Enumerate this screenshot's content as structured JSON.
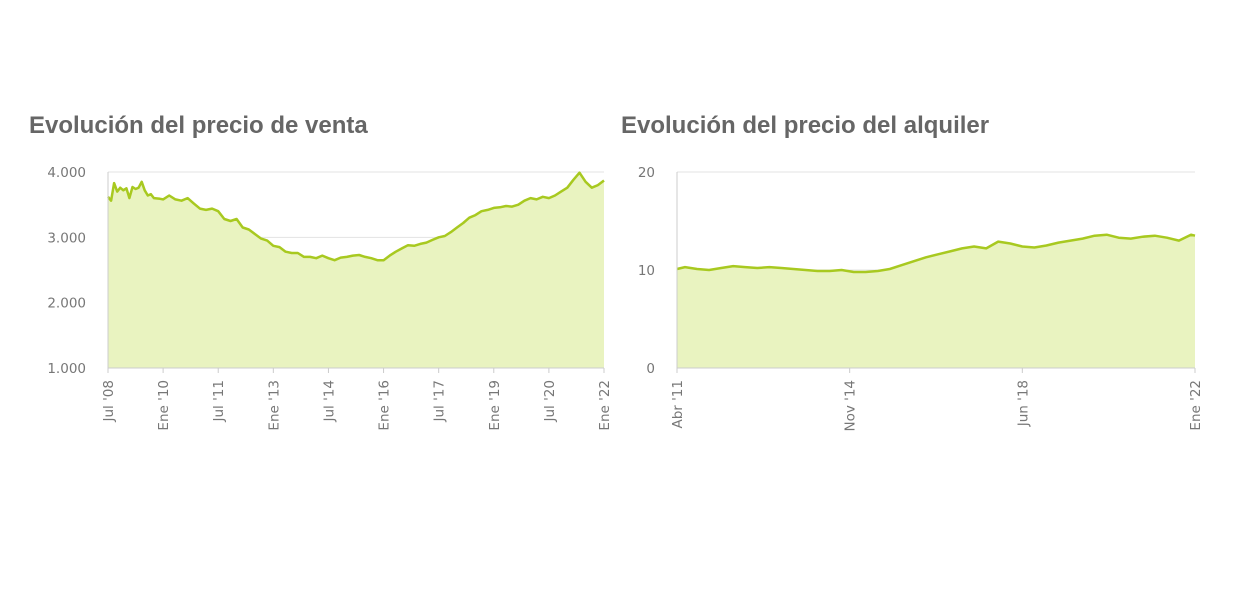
{
  "chart_data": [
    {
      "type": "area",
      "title": "Evolución del precio de venta",
      "xlabel": "",
      "ylabel": "",
      "x_start": "2008-07",
      "x_end": "2022-01",
      "ylim": [
        1000,
        4000
      ],
      "yticks": [
        1000,
        2000,
        3000,
        4000
      ],
      "ytick_labels": [
        "1.000",
        "2.000",
        "3.000",
        "4.000"
      ],
      "xtick_dates": [
        "2008-07",
        "2010-01",
        "2011-07",
        "2013-01",
        "2014-07",
        "2016-01",
        "2017-07",
        "2019-01",
        "2020-07",
        "2022-01"
      ],
      "xtick_labels": [
        "Jul '08",
        "Ene '10",
        "Jul '11",
        "Ene '13",
        "Jul '14",
        "Ene '16",
        "Jul '17",
        "Ene '19",
        "Jul '20",
        "Ene '22"
      ],
      "grid": true,
      "color": "#a8c920",
      "fill_color": "#e9f3c0",
      "series": [
        {
          "x": [
            "2008-07",
            "2008-08",
            "2008-09",
            "2008-10",
            "2008-11",
            "2008-12",
            "2009-01",
            "2009-02",
            "2009-03",
            "2009-04",
            "2009-05",
            "2009-06",
            "2009-07",
            "2009-08",
            "2009-09",
            "2009-10",
            "2009-12",
            "2010-01",
            "2010-03",
            "2010-05",
            "2010-07",
            "2010-09",
            "2010-11",
            "2011-01",
            "2011-03",
            "2011-05",
            "2011-07",
            "2011-09",
            "2011-11",
            "2012-01",
            "2012-03",
            "2012-05",
            "2012-07",
            "2012-09",
            "2012-11",
            "2013-01",
            "2013-03",
            "2013-05",
            "2013-07",
            "2013-09",
            "2013-11",
            "2014-01",
            "2014-03",
            "2014-05",
            "2014-07",
            "2014-09",
            "2014-11",
            "2015-01",
            "2015-03",
            "2015-05",
            "2015-07",
            "2015-09",
            "2015-11",
            "2016-01",
            "2016-03",
            "2016-05",
            "2016-07",
            "2016-09",
            "2016-11",
            "2017-01",
            "2017-03",
            "2017-05",
            "2017-07",
            "2017-09",
            "2017-11",
            "2018-01",
            "2018-03",
            "2018-05",
            "2018-07",
            "2018-09",
            "2018-11",
            "2019-01",
            "2019-03",
            "2019-05",
            "2019-07",
            "2019-09",
            "2019-11",
            "2020-01",
            "2020-03",
            "2020-05",
            "2020-07",
            "2020-09",
            "2020-11",
            "2021-01",
            "2021-03",
            "2021-05",
            "2021-07",
            "2021-09",
            "2021-11",
            "2022-01"
          ],
          "y": [
            3620,
            3560,
            3830,
            3700,
            3760,
            3720,
            3750,
            3600,
            3770,
            3740,
            3760,
            3850,
            3720,
            3640,
            3660,
            3600,
            3590,
            3580,
            3640,
            3580,
            3560,
            3600,
            3520,
            3440,
            3420,
            3440,
            3400,
            3280,
            3250,
            3280,
            3150,
            3120,
            3050,
            2980,
            2950,
            2870,
            2850,
            2780,
            2760,
            2760,
            2700,
            2700,
            2680,
            2720,
            2680,
            2650,
            2690,
            2700,
            2720,
            2730,
            2700,
            2680,
            2650,
            2650,
            2720,
            2780,
            2830,
            2880,
            2870,
            2900,
            2920,
            2960,
            3000,
            3020,
            3080,
            3150,
            3220,
            3300,
            3340,
            3400,
            3420,
            3450,
            3460,
            3480,
            3470,
            3500,
            3560,
            3600,
            3580,
            3620,
            3600,
            3640,
            3700,
            3760,
            3880,
            3990,
            3850,
            3760,
            3800,
            3870
          ]
        }
      ]
    },
    {
      "type": "area",
      "title": "Evolución del precio del alquiler",
      "xlabel": "",
      "ylabel": "",
      "x_start": "2011-04",
      "x_end": "2022-01",
      "ylim": [
        0,
        20
      ],
      "yticks": [
        0,
        10,
        20
      ],
      "ytick_labels": [
        "0",
        "10",
        "20"
      ],
      "xtick_dates": [
        "2011-04",
        "2014-11",
        "2018-06",
        "2022-01"
      ],
      "xtick_labels": [
        "Abr '11",
        "Nov '14",
        "Jun '18",
        "Ene '22"
      ],
      "grid": true,
      "color": "#a8c920",
      "fill_color": "#e9f3c0",
      "series": [
        {
          "x": [
            "2011-04",
            "2011-06",
            "2011-09",
            "2011-12",
            "2012-03",
            "2012-06",
            "2012-09",
            "2012-12",
            "2013-03",
            "2013-06",
            "2013-09",
            "2013-12",
            "2014-03",
            "2014-06",
            "2014-09",
            "2014-12",
            "2015-03",
            "2015-06",
            "2015-09",
            "2015-12",
            "2016-03",
            "2016-06",
            "2016-09",
            "2016-12",
            "2017-03",
            "2017-06",
            "2017-09",
            "2017-12",
            "2018-03",
            "2018-06",
            "2018-09",
            "2018-12",
            "2019-03",
            "2019-06",
            "2019-09",
            "2019-12",
            "2020-03",
            "2020-06",
            "2020-09",
            "2020-12",
            "2021-03",
            "2021-06",
            "2021-09",
            "2021-12",
            "2022-01"
          ],
          "y": [
            10.1,
            10.3,
            10.1,
            10.0,
            10.2,
            10.4,
            10.3,
            10.2,
            10.3,
            10.2,
            10.1,
            10.0,
            9.9,
            9.9,
            10.0,
            9.8,
            9.8,
            9.9,
            10.1,
            10.5,
            10.9,
            11.3,
            11.6,
            11.9,
            12.2,
            12.4,
            12.2,
            12.9,
            12.7,
            12.4,
            12.3,
            12.5,
            12.8,
            13.0,
            13.2,
            13.5,
            13.6,
            13.3,
            13.2,
            13.4,
            13.5,
            13.3,
            13.0,
            13.6,
            13.5
          ]
        }
      ]
    }
  ]
}
